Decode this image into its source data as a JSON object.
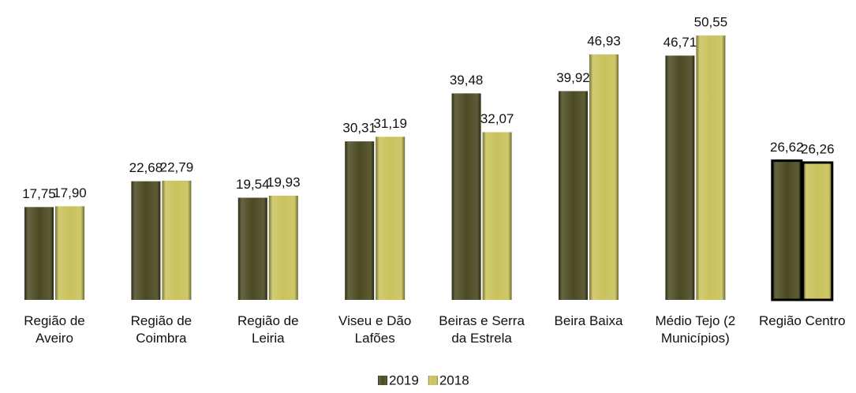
{
  "chart_data": {
    "type": "bar",
    "categories": [
      "Região de Aveiro",
      "Região de Coimbra",
      "Região de Leiria",
      "Viseu e Dão Lafões",
      "Beiras e Serra da Estrela",
      "Beira Baixa",
      "Médio Tejo (2 Municípios)",
      "Região Centro"
    ],
    "series": [
      {
        "name": "2019",
        "color": "#4b4a22",
        "values": [
          17.75,
          22.68,
          19.54,
          30.31,
          39.48,
          39.92,
          46.71,
          26.62
        ],
        "value_labels": [
          "17,75",
          "22,68",
          "19,54",
          "30,31",
          "39,48",
          "39,92",
          "46,71",
          "26,62"
        ]
      },
      {
        "name": "2018",
        "color": "#c9c25c",
        "values": [
          17.9,
          22.79,
          19.93,
          31.19,
          32.07,
          46.93,
          50.55,
          26.26
        ],
        "value_labels": [
          "17,90",
          "22,79",
          "19,93",
          "31,19",
          "32,07",
          "46,93",
          "50,55",
          "26,26"
        ]
      }
    ],
    "highlight_index": 7,
    "legend": "bottom"
  }
}
